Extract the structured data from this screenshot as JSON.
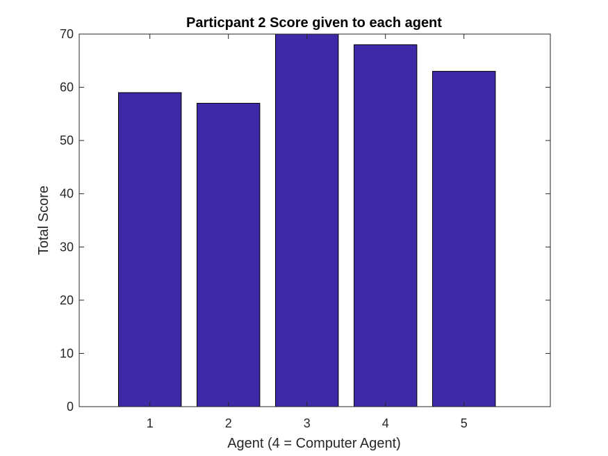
{
  "chart_data": {
    "type": "bar",
    "title": "Particpant 2 Score given to each agent",
    "xlabel": "Agent (4 = Computer Agent)",
    "ylabel": "Total Score",
    "categories": [
      "1",
      "2",
      "3",
      "4",
      "5"
    ],
    "values": [
      59,
      57,
      70,
      68,
      63
    ],
    "xlim": [
      0.1,
      6.1
    ],
    "ylim": [
      0,
      70
    ],
    "yticks": [
      0,
      10,
      20,
      30,
      40,
      50,
      60,
      70
    ],
    "grid": false,
    "legend": "none",
    "bar_color": "#3E29A6",
    "bar_edge_color": "#000000",
    "axis_color": "#262626"
  }
}
